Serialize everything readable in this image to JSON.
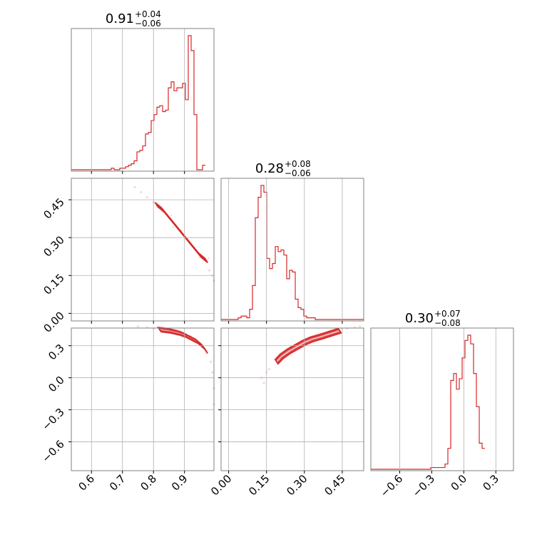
{
  "chart_data": {
    "type": "corner",
    "color": "#d62728",
    "grid": true,
    "parameters": [
      {
        "title": {
          "value": "0.91",
          "plus": "+0.04",
          "minus": "−0.06"
        },
        "range": [
          0.535,
          0.995
        ],
        "ticks": [
          {
            "v": 0.6,
            "label": "0.6"
          },
          {
            "v": 0.7,
            "label": "0.7"
          },
          {
            "v": 0.8,
            "label": "0.8"
          },
          {
            "v": 0.9,
            "label": "0.9"
          }
        ]
      },
      {
        "title": {
          "value": "0.28",
          "plus": "+0.08",
          "minus": "−0.06"
        },
        "range": [
          -0.03,
          0.535
        ],
        "ticks": [
          {
            "v": 0.0,
            "label": "0.00"
          },
          {
            "v": 0.15,
            "label": "0.15"
          },
          {
            "v": 0.3,
            "label": "0.30"
          },
          {
            "v": 0.45,
            "label": "0.45"
          }
        ]
      },
      {
        "title": {
          "value": "0.30",
          "plus": "+0.07",
          "minus": "−0.08"
        },
        "range": [
          -0.87,
          0.465
        ],
        "ticks": [
          {
            "v": -0.6,
            "label": "−0.6"
          },
          {
            "v": -0.3,
            "label": "−0.3"
          },
          {
            "v": 0.0,
            "label": "0.0"
          },
          {
            "v": 0.3,
            "label": "0.3"
          }
        ]
      }
    ],
    "histograms": [
      {
        "param": 0,
        "edges_start": 0.535,
        "bin_width": 0.0092,
        "counts": [
          0,
          0,
          0,
          0,
          0,
          0,
          0,
          0,
          0,
          0,
          0,
          0,
          0,
          0,
          1,
          0,
          0,
          1,
          1,
          2,
          3,
          4,
          6,
          12,
          13,
          16,
          24,
          25,
          33,
          37,
          42,
          43,
          39,
          40,
          55,
          59,
          53,
          55,
          55,
          58,
          47,
          90,
          80,
          37,
          0,
          0,
          3
        ]
      },
      {
        "param": 1,
        "edges_start": -0.03,
        "bin_width": 0.0113,
        "counts": [
          0,
          0,
          0,
          0,
          0,
          0,
          1,
          2,
          2,
          1,
          6,
          20,
          60,
          72,
          79,
          75,
          36,
          30,
          33,
          43,
          40,
          41,
          38,
          24,
          29,
          28,
          12,
          7,
          6,
          2,
          1,
          1,
          1,
          0,
          0,
          0,
          0,
          0,
          0,
          0,
          0,
          0,
          0,
          0,
          0,
          0,
          0,
          0,
          0,
          0
        ]
      },
      {
        "param": 2,
        "edges_start": -0.87,
        "bin_width": 0.0267,
        "counts": [
          0,
          0,
          0,
          0,
          0,
          0,
          0,
          0,
          0,
          0,
          0,
          0,
          0,
          0,
          0,
          0,
          0,
          0,
          0,
          0,
          0,
          1,
          1,
          1,
          1,
          1,
          3,
          12,
          51,
          55,
          46,
          52,
          64,
          74,
          77,
          72,
          55,
          36,
          15,
          12
        ]
      }
    ],
    "pairs": [
      {
        "x_param": 0,
        "y_param": 1,
        "core_points": [
          [
            0.81,
            0.43
          ],
          [
            0.83,
            0.41
          ],
          [
            0.85,
            0.38
          ],
          [
            0.87,
            0.35
          ],
          [
            0.89,
            0.32
          ],
          [
            0.91,
            0.29
          ],
          [
            0.93,
            0.26
          ],
          [
            0.95,
            0.23
          ],
          [
            0.97,
            0.21
          ]
        ],
        "tail_points": [
          [
            0.74,
            0.5
          ],
          [
            0.76,
            0.48
          ],
          [
            0.78,
            0.46
          ],
          [
            0.8,
            0.44
          ],
          [
            0.98,
            0.17
          ],
          [
            0.99,
            0.15
          ],
          [
            0.995,
            0.13
          ]
        ]
      },
      {
        "x_param": 0,
        "y_param": 2,
        "core_points": [
          [
            0.82,
            0.45
          ],
          [
            0.85,
            0.44
          ],
          [
            0.88,
            0.42
          ],
          [
            0.9,
            0.4
          ],
          [
            0.92,
            0.37
          ],
          [
            0.94,
            0.34
          ],
          [
            0.96,
            0.29
          ],
          [
            0.97,
            0.25
          ]
        ],
        "tail_points": [
          [
            0.75,
            0.48
          ],
          [
            0.78,
            0.47
          ],
          [
            0.8,
            0.46
          ],
          [
            0.985,
            0.15
          ],
          [
            0.99,
            0.05
          ],
          [
            0.995,
            -0.1
          ],
          [
            0.995,
            -0.25
          ]
        ]
      },
      {
        "x_param": 1,
        "y_param": 2,
        "core_points": [
          [
            0.19,
            0.15
          ],
          [
            0.21,
            0.2
          ],
          [
            0.24,
            0.25
          ],
          [
            0.27,
            0.29
          ],
          [
            0.3,
            0.33
          ],
          [
            0.33,
            0.36
          ],
          [
            0.36,
            0.38
          ],
          [
            0.4,
            0.41
          ],
          [
            0.44,
            0.44
          ]
        ],
        "tail_points": [
          [
            0.13,
            0.0
          ],
          [
            0.14,
            -0.05
          ],
          [
            0.15,
            0.05
          ],
          [
            0.16,
            0.08
          ],
          [
            0.47,
            0.46
          ],
          [
            0.5,
            0.47
          ],
          [
            0.52,
            0.48
          ]
        ]
      }
    ]
  }
}
